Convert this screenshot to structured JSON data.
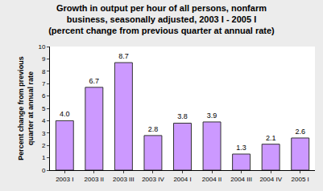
{
  "chart_data": {
    "type": "bar",
    "title": "Growth in output per hour of all persons, nonfarm\nbusiness, seasonally adjusted, 2003 I - 2005 I\n(percent change from previous quarter at annual rate)",
    "y_label": "Percent change from previous\nquarter at annual rate",
    "categories": [
      "2003 I",
      "2003 II",
      "2003 III",
      "2003 IV",
      "2004 I",
      "2004 II",
      "2004 III",
      "2004 IV",
      "2005 I"
    ],
    "values": [
      4.0,
      6.7,
      8.7,
      2.8,
      3.8,
      3.9,
      1.3,
      2.1,
      2.6
    ],
    "value_labels": [
      "4.0",
      "6.7",
      "8.7",
      "2.8",
      "3.8",
      "3.9",
      "1.3",
      "2.1",
      "2.6"
    ],
    "color": "#cc99ff",
    "ylim": [
      0,
      10
    ],
    "yticks": [
      0,
      1,
      2,
      3,
      4,
      5,
      6,
      7,
      8,
      9,
      10
    ],
    "grid": false,
    "data_labels": true
  }
}
